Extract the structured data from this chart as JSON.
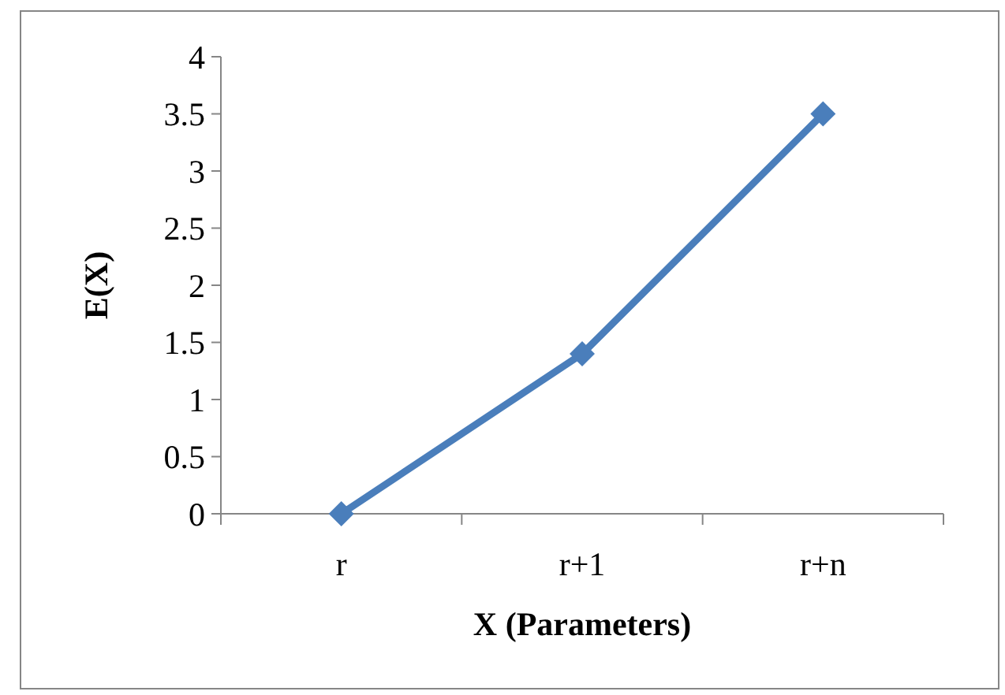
{
  "chart_data": {
    "type": "line",
    "xlabel": "X (Parameters)",
    "ylabel": "E(X)",
    "categories": [
      "r",
      "r+1",
      "r+n"
    ],
    "series": [
      {
        "color": "#4a7ebb",
        "values": [
          0,
          1.4,
          3.5
        ]
      }
    ],
    "ylim": [
      0,
      4
    ],
    "yticks": [
      0,
      0.5,
      1,
      1.5,
      2,
      2.5,
      3,
      3.5,
      4
    ],
    "grid": false,
    "marker": "diamond",
    "line_style": "solid"
  }
}
